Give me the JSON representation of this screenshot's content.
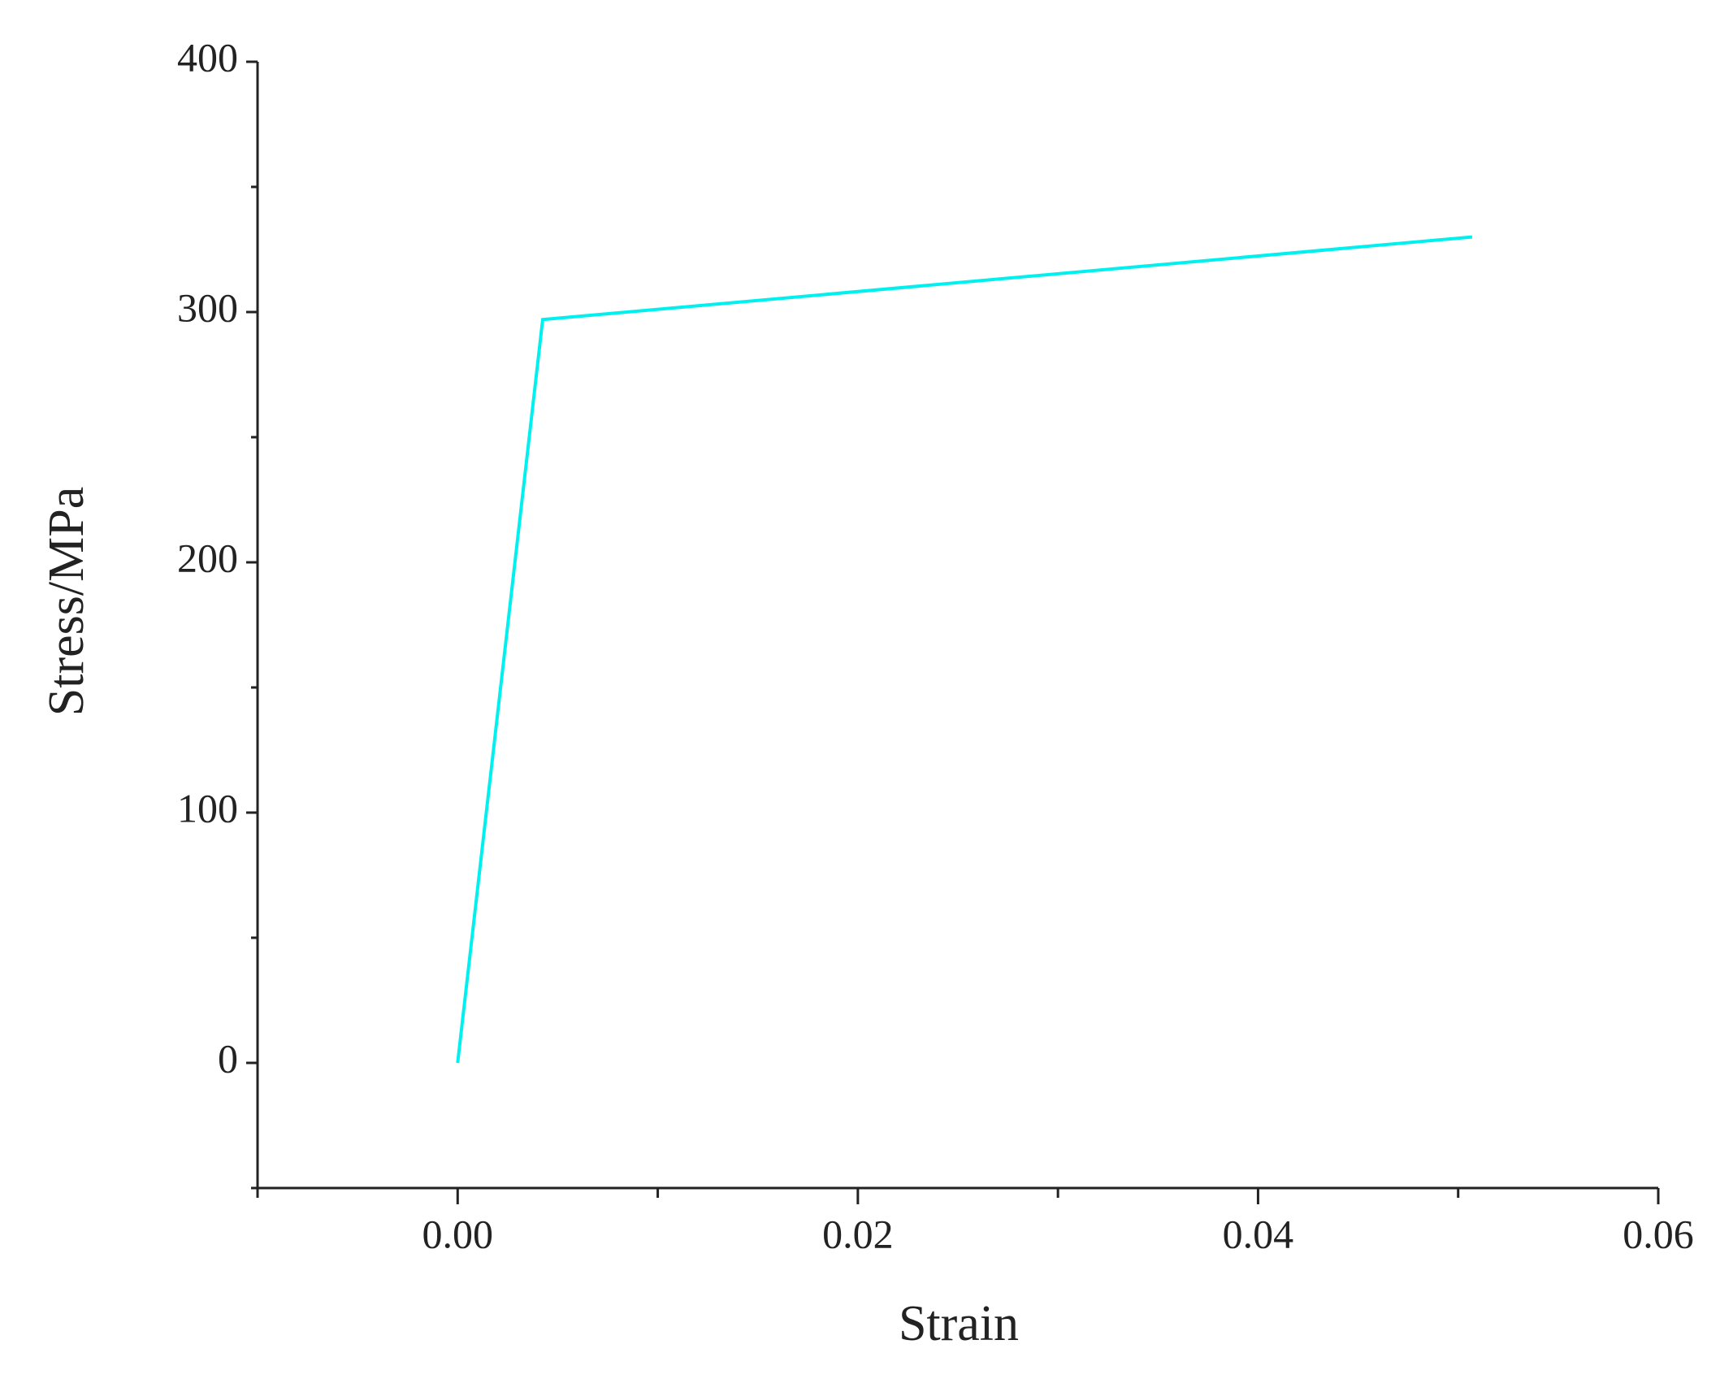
{
  "chart_data": {
    "type": "line",
    "x_label": "Strain",
    "y_label": "Stress/MPa",
    "xlim": [
      -0.01,
      0.06
    ],
    "ylim": [
      -50,
      400
    ],
    "xticks": [
      {
        "value": 0,
        "label": "0.00"
      },
      0.02,
      0.04,
      0.06
    ],
    "yticks": [
      0,
      100,
      200,
      300,
      400
    ],
    "xminorticks": [
      -0.01,
      0.01,
      0.03,
      0.05
    ],
    "yminorticks": [
      -50,
      50,
      150,
      250,
      350
    ],
    "grid": false,
    "series": [
      {
        "color": "#00f0f0",
        "x": [
          0,
          0.00425,
          0.0507
        ],
        "values": [
          0,
          297,
          330
        ]
      }
    ]
  }
}
